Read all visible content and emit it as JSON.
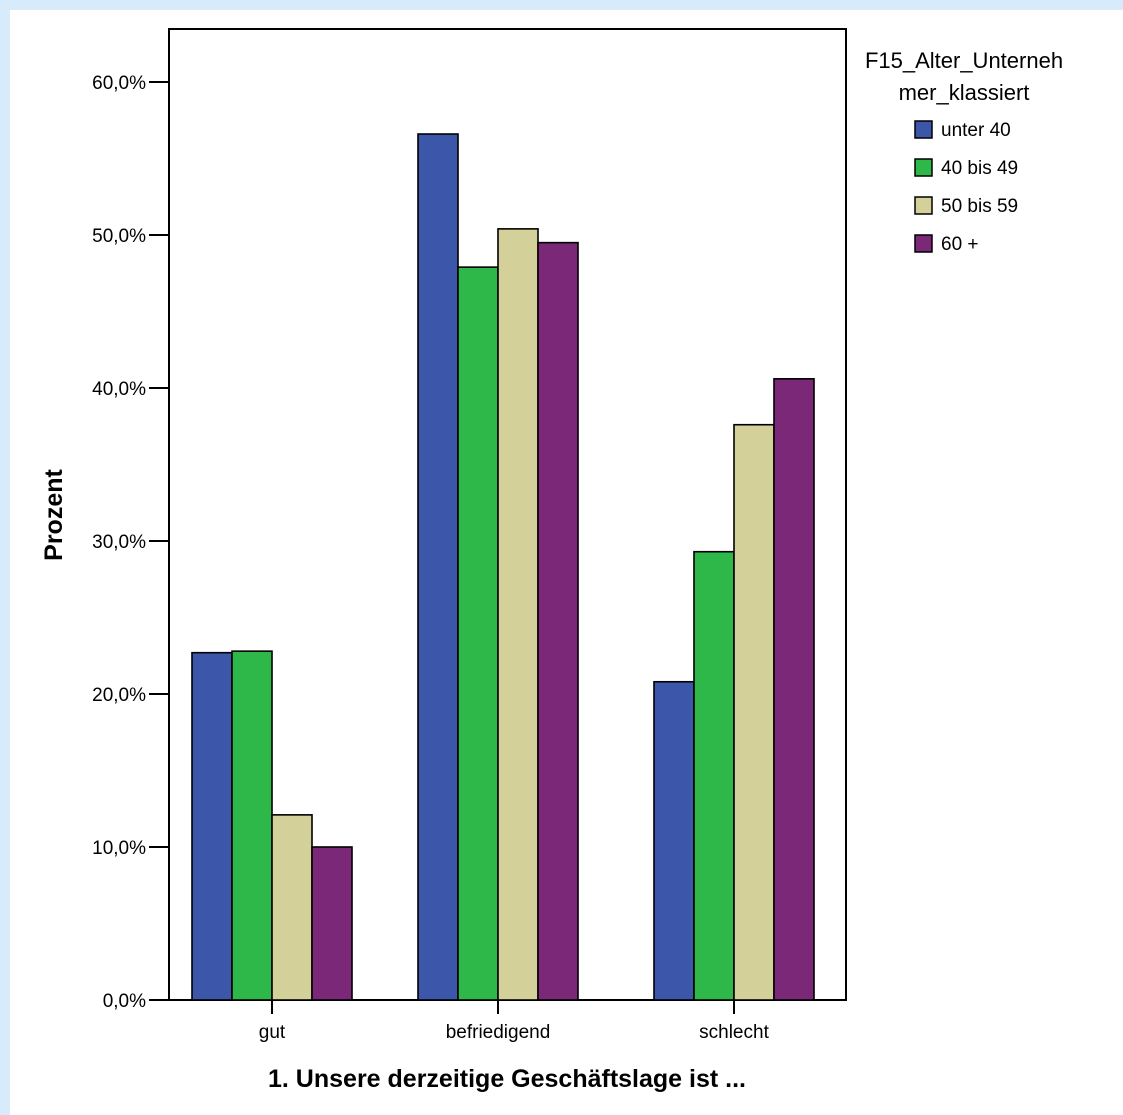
{
  "chart_data": {
    "type": "bar",
    "xlabel": "1. Unsere derzeitige Geschäftslage ist ...",
    "ylabel": "Prozent",
    "ylim": [
      0,
      63
    ],
    "y_ticks": [
      "0,0%",
      "10,0%",
      "20,0%",
      "30,0%",
      "40,0%",
      "50,0%",
      "60,0%"
    ],
    "y_tick_values": [
      0,
      10,
      20,
      30,
      40,
      50,
      60
    ],
    "categories": [
      "gut",
      "befriedigend",
      "schlecht"
    ],
    "legend": {
      "title_lines": [
        "F15_Alter_Unterneh",
        "mer_klassiert"
      ],
      "placement": "right"
    },
    "series": [
      {
        "name": "unter 40",
        "color": "#3c56aa",
        "values": [
          22.7,
          56.6,
          20.8
        ]
      },
      {
        "name": "40 bis 49",
        "color": "#2eb84a",
        "values": [
          22.8,
          47.9,
          29.3
        ]
      },
      {
        "name": "50 bis 59",
        "color": "#d4d09a",
        "values": [
          12.1,
          50.4,
          37.6
        ]
      },
      {
        "name": "60 +",
        "color": "#7b2878",
        "values": [
          10.0,
          49.5,
          40.6
        ]
      }
    ],
    "grid": false
  }
}
